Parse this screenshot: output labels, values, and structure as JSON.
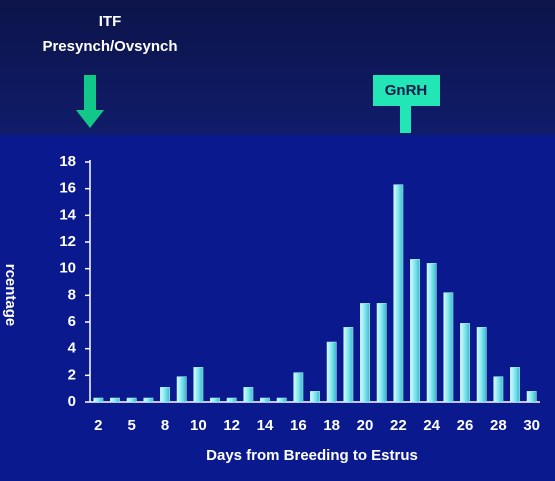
{
  "chart_data": {
    "type": "bar",
    "annotations": {
      "itf_line1": "ITF",
      "itf_line2": "Presynch/Ovsynch",
      "gnrh": "GnRH"
    },
    "y_label": "rcentage",
    "x_label": "Days from Breeding to Estrus",
    "categories": [
      "2",
      null,
      "5",
      null,
      "8",
      null,
      "10",
      null,
      "12",
      null,
      "14",
      null,
      "16",
      null,
      "18",
      null,
      "20",
      null,
      "22",
      null,
      "24",
      null,
      "26",
      null,
      "28",
      null,
      "30"
    ],
    "values": [
      0.3,
      0.3,
      0.3,
      0.3,
      1.1,
      1.9,
      2.6,
      0.3,
      0.3,
      1.1,
      0.3,
      0.3,
      2.2,
      0.8,
      4.5,
      5.6,
      7.4,
      7.4,
      16.3,
      10.7,
      10.4,
      8.2,
      5.9,
      5.6,
      1.9,
      2.6,
      0.8
    ],
    "color": "#7fe6f0",
    "ylim": [
      0,
      18
    ],
    "yticks": [
      0,
      2,
      4,
      6,
      8,
      10,
      12,
      14,
      16,
      18
    ],
    "grid": false
  }
}
